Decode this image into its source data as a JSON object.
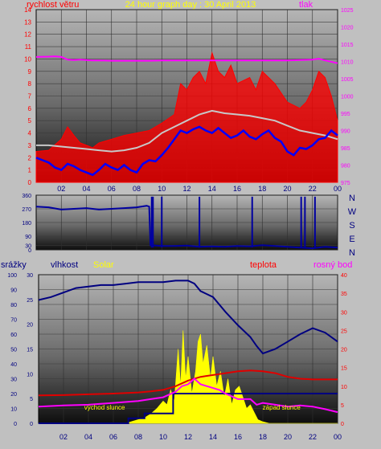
{
  "title": "24 hour graph day : 30 April 2013",
  "colors": {
    "background": "#c0c0c0",
    "wind": "#ff0000",
    "wind_avg": "#c8c8c8",
    "wind_gust": "#0000ff",
    "pressure": "#ff00ff",
    "direction": "#0000a0",
    "humidity": "#000080",
    "solar": "#ffff00",
    "temperature": "#e00000",
    "dewpoint": "#ff00ff",
    "rain": "#000080"
  },
  "chart_data": [
    {
      "type": "line",
      "panel": "wind-pressure",
      "left_axis_label": "rychlost větru",
      "right_axis_label": "tlak",
      "x_ticks": [
        "02",
        "04",
        "06",
        "08",
        "10",
        "12",
        "14",
        "16",
        "18",
        "20",
        "22",
        "00"
      ],
      "x_range_hours": [
        0,
        24
      ],
      "left_ylim": [
        0,
        14
      ],
      "left_ticks": [
        "0",
        "1",
        "2",
        "3",
        "4",
        "5",
        "6",
        "7",
        "8",
        "9",
        "10",
        "11",
        "12",
        "13",
        "14"
      ],
      "right_ylim": [
        975,
        1025
      ],
      "right_ticks": [
        "975",
        "980",
        "985",
        "990",
        "995",
        "1000",
        "1005",
        "1010",
        "1015",
        "1020",
        "1025"
      ],
      "grid": true,
      "series": [
        {
          "key": "pressure",
          "axis": "right",
          "x": [
            0,
            1,
            1.5,
            2,
            2.5,
            3,
            3.5,
            4,
            4.5,
            5,
            6,
            7,
            8,
            9,
            10,
            11,
            12,
            13,
            14,
            15,
            16,
            17,
            18,
            19,
            20,
            21,
            22,
            22.5,
            23,
            24
          ],
          "values": [
            1011.3,
            1011.4,
            1011.5,
            1011.3,
            1010.5,
            1010.4,
            1010.5,
            1010.4,
            1010.3,
            1010.3,
            1010.2,
            1010.2,
            1010.2,
            1010.2,
            1010.3,
            1010.3,
            1010.3,
            1010.3,
            1010.3,
            1010.3,
            1010.3,
            1010.3,
            1010.3,
            1010.3,
            1010.3,
            1010.4,
            1010.5,
            1010.8,
            1010.3,
            1009.5
          ]
        },
        {
          "key": "wind_max",
          "axis": "left",
          "x": [
            0,
            1,
            2,
            2.5,
            3,
            3.5,
            4,
            4.5,
            5,
            6,
            7,
            8,
            9,
            9.5,
            10,
            11,
            11.5,
            12,
            12.5,
            13,
            13.5,
            14,
            14.5,
            15,
            15.5,
            16,
            17,
            17.5,
            18,
            19,
            20,
            21,
            21.5,
            22,
            22.5,
            23,
            23.5,
            24
          ],
          "values": [
            2.5,
            2.6,
            3.5,
            4.5,
            3.8,
            3.2,
            3.0,
            2.8,
            3.2,
            3.5,
            3.8,
            4.0,
            4.2,
            4.5,
            4.8,
            5.5,
            8.0,
            7.5,
            8.5,
            9.0,
            8.0,
            10.5,
            9.0,
            8.5,
            9.5,
            8.0,
            8.5,
            7.5,
            9.0,
            8.0,
            6.5,
            6.0,
            6.5,
            7.5,
            9.0,
            8.5,
            7.0,
            5.0
          ]
        },
        {
          "key": "wind_avg",
          "axis": "left",
          "x": [
            0,
            1,
            2,
            3,
            4,
            5,
            6,
            7,
            8,
            9,
            10,
            11,
            12,
            13,
            14,
            15,
            16,
            17,
            18,
            19,
            20,
            21,
            22,
            23,
            24
          ],
          "values": [
            3.0,
            3.0,
            2.9,
            2.8,
            2.7,
            2.6,
            2.5,
            2.6,
            2.8,
            3.2,
            4.0,
            4.5,
            5.0,
            5.5,
            5.8,
            5.6,
            5.5,
            5.4,
            5.2,
            5.0,
            4.6,
            4.2,
            4.0,
            3.8,
            3.5
          ]
        },
        {
          "key": "wind_gust",
          "axis": "left",
          "x": [
            0,
            0.5,
            1,
            1.5,
            2,
            2.5,
            3,
            3.5,
            4,
            4.5,
            5,
            5.5,
            6,
            6.5,
            7,
            7.5,
            8,
            8.5,
            9,
            9.5,
            10,
            10.5,
            11,
            11.5,
            12,
            12.5,
            13,
            13.5,
            14,
            14.5,
            15,
            15.5,
            16,
            16.5,
            17,
            17.5,
            18,
            18.5,
            19,
            19.5,
            20,
            20.5,
            21,
            21.5,
            22,
            22.5,
            23,
            23.5,
            24
          ],
          "values": [
            2.0,
            1.8,
            1.6,
            1.2,
            1.0,
            1.5,
            1.3,
            1.0,
            0.8,
            0.6,
            1.0,
            1.5,
            1.2,
            1.0,
            1.4,
            1.0,
            0.8,
            1.5,
            1.8,
            1.7,
            2.2,
            2.8,
            3.5,
            4.2,
            4.0,
            4.3,
            4.5,
            4.2,
            4.0,
            4.4,
            4.0,
            3.6,
            3.8,
            4.2,
            3.7,
            3.5,
            3.9,
            4.2,
            3.6,
            3.3,
            2.5,
            2.2,
            2.8,
            2.7,
            3.0,
            3.5,
            3.6,
            4.2,
            3.8
          ]
        }
      ]
    },
    {
      "type": "line",
      "panel": "wind-direction",
      "left_ticks": [
        "0",
        "30",
        "90",
        "180",
        "270",
        "360"
      ],
      "right_labels": [
        "N",
        "W",
        "S",
        "E",
        "N"
      ],
      "ylim": [
        0,
        360
      ],
      "grid": true,
      "series": [
        {
          "key": "direction",
          "x": [
            0,
            1,
            2,
            3,
            4,
            5,
            6,
            7,
            8,
            8.8,
            9,
            9.1,
            10,
            11,
            12,
            13,
            14,
            15,
            16,
            17,
            18,
            19,
            20,
            21,
            22,
            23,
            24
          ],
          "values": [
            285,
            280,
            265,
            270,
            275,
            265,
            270,
            275,
            280,
            290,
            285,
            30,
            25,
            25,
            28,
            20,
            22,
            20,
            25,
            22,
            30,
            25,
            20,
            15,
            10,
            20,
            15
          ]
        }
      ]
    },
    {
      "type": "line",
      "panel": "humidity-temperature",
      "labels": [
        "srážky",
        "vlhkost",
        "Solar",
        "teplota",
        "rosný bod"
      ],
      "solar_labels": [
        "východ slunce",
        "západ slunce"
      ],
      "x_ticks": [
        "02",
        "04",
        "06",
        "08",
        "10",
        "12",
        "14",
        "16",
        "18",
        "20",
        "22",
        "00"
      ],
      "x_range_hours": [
        0,
        24
      ],
      "axis_humidity_ticks": [
        "0",
        "10",
        "20",
        "30",
        "40",
        "50",
        "60",
        "70",
        "80",
        "90",
        "100"
      ],
      "axis_rain_ticks": [
        "0",
        "5",
        "10",
        "15",
        "20",
        "25",
        "30"
      ],
      "axis_right_ticks": [
        "0",
        "5",
        "10",
        "15",
        "20",
        "25",
        "30",
        "35",
        "40"
      ],
      "grid": true,
      "series": [
        {
          "key": "humidity",
          "axis": "humidity",
          "x": [
            0,
            1,
            2,
            3,
            4,
            5,
            6,
            7,
            8,
            9,
            10,
            11,
            12,
            12.5,
            13,
            14,
            15,
            16,
            17,
            17.5,
            18,
            19,
            20,
            21,
            22,
            23,
            24
          ],
          "values": [
            83,
            85,
            88,
            91,
            92,
            93,
            93,
            94,
            95,
            95,
            95,
            96,
            96,
            94,
            89,
            85,
            75,
            66,
            58,
            52,
            47,
            50,
            55,
            60,
            64,
            61,
            55
          ]
        },
        {
          "key": "solar",
          "axis": "right",
          "x": [
            0,
            7,
            7.5,
            8,
            8.5,
            9,
            9.5,
            10,
            10.3,
            10.6,
            10.9,
            11.2,
            11.4,
            11.6,
            11.8,
            12,
            12.3,
            12.6,
            12.8,
            13,
            13.2,
            13.5,
            13.8,
            14,
            14.3,
            14.6,
            14.9,
            15.2,
            15.5,
            15.8,
            16.1,
            16.4,
            16.7,
            17,
            17.3,
            17.6,
            18,
            18.5,
            24
          ],
          "values": [
            0,
            0,
            0.5,
            1,
            1.5,
            2.5,
            4,
            6,
            5,
            9,
            6,
            20,
            10,
            25,
            12,
            18,
            8,
            14,
            22,
            24,
            16,
            21,
            12,
            18,
            10,
            14,
            7,
            12,
            5,
            9,
            10,
            7,
            4,
            5,
            3,
            1,
            0.4,
            0,
            0
          ]
        },
        {
          "key": "temperature",
          "axis": "right",
          "x": [
            0,
            2,
            4,
            6,
            8,
            9,
            10,
            11,
            12,
            13,
            14,
            15,
            16,
            17,
            18,
            19,
            20,
            21,
            22,
            23,
            24
          ],
          "values": [
            7.5,
            7.6,
            7.8,
            8.0,
            8.3,
            8.6,
            9.0,
            10.0,
            11.5,
            12.5,
            13.0,
            13.5,
            14.0,
            14.2,
            14.0,
            13.5,
            12.5,
            12.0,
            11.8,
            11.8,
            11.8
          ]
        },
        {
          "key": "dewpoint",
          "axis": "right",
          "x": [
            0,
            2,
            4,
            6,
            8,
            9,
            10,
            11,
            11.5,
            12,
            12.5,
            13,
            14,
            14.5,
            15,
            16,
            17,
            17.5,
            18,
            19,
            20,
            21,
            22,
            23,
            24
          ],
          "values": [
            4.5,
            4.8,
            5.0,
            5.5,
            6.0,
            6.5,
            7.0,
            8.5,
            10.0,
            10.5,
            12.0,
            10.5,
            9.5,
            9.0,
            8.0,
            6.5,
            6.5,
            5.0,
            5.5,
            5.0,
            4.5,
            4.8,
            4.5,
            3.8,
            3.0
          ]
        },
        {
          "key": "rain",
          "axis": "rain",
          "x": [
            0,
            3,
            6,
            7.2,
            7.2,
            8.5,
            8.5,
            10.8,
            10.8,
            24
          ],
          "values": [
            0,
            0,
            0,
            0,
            1,
            1,
            2,
            2,
            6,
            6
          ]
        }
      ]
    }
  ]
}
